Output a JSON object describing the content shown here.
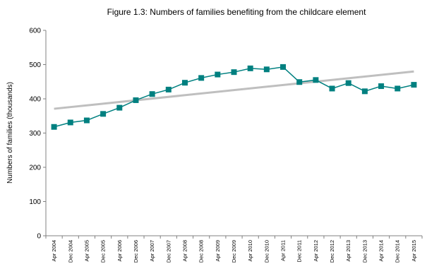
{
  "chart_data": {
    "type": "line",
    "title": "Figure 1.3: Numbers of families benefiting from the childcare element",
    "y_label": "Numbers of families (thousands)",
    "categories": [
      "Apr 2004",
      "Dec 2004",
      "Apr 2005",
      "Dec 2005",
      "Apr 2006",
      "Dec 2006",
      "Apr 2007",
      "Dec 2007",
      "Apr 2008",
      "Dec 2008",
      "Apr 2009",
      "Dec 2009",
      "Apr 2010",
      "Dec 2010",
      "Apr 2011",
      "Dec 2011",
      "Apr 2012",
      "Dec 2012",
      "Apr 2013",
      "Dec 2013",
      "Apr 2014",
      "Dec 2014",
      "Apr 2015"
    ],
    "series": [
      {
        "color": "#008080",
        "marker": "square",
        "values": [
          318,
          331,
          337,
          356,
          374,
          396,
          414,
          427,
          447,
          461,
          471,
          478,
          489,
          486,
          493,
          449,
          455,
          430,
          446,
          422,
          437,
          430,
          441
        ]
      }
    ],
    "trendline": {
      "color": "#bfbfbf",
      "values": [
        371,
        480
      ]
    },
    "ylim": [
      0,
      600
    ],
    "yticks": [
      0,
      100,
      200,
      300,
      400,
      500,
      600
    ],
    "grid": false
  }
}
